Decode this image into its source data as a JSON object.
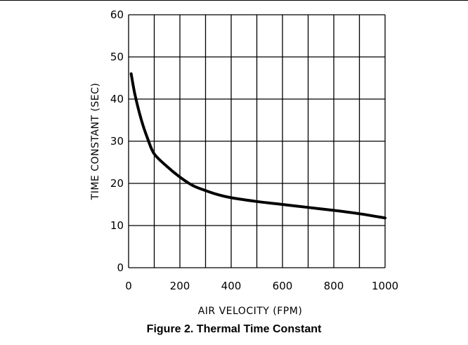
{
  "figure_caption": "Figure 2. Thermal Time Constant",
  "chart_data": {
    "type": "line",
    "title": "",
    "xlabel": "AIR VELOCITY (FPM)",
    "ylabel": "TIME CONSTANT (SEC)",
    "xlim": [
      0,
      1000
    ],
    "ylim": [
      0,
      60
    ],
    "x_ticks": [
      0,
      200,
      400,
      600,
      800,
      1000
    ],
    "y_ticks": [
      0,
      10,
      20,
      30,
      40,
      50,
      60
    ],
    "x_gridlines": [
      0,
      100,
      200,
      300,
      400,
      500,
      600,
      700,
      800,
      900,
      1000
    ],
    "y_gridlines": [
      0,
      10,
      20,
      30,
      40,
      50,
      60
    ],
    "grid": true,
    "line_color": "#000000",
    "series": [
      {
        "name": "",
        "x": [
          10,
          25,
          50,
          75,
          100,
          150,
          200,
          250,
          300,
          350,
          400,
          500,
          600,
          700,
          800,
          900,
          1000
        ],
        "y": [
          46,
          41,
          35,
          30.5,
          27,
          24,
          21.5,
          19.5,
          18.3,
          17.3,
          16.6,
          15.7,
          15,
          14.3,
          13.6,
          12.8,
          11.8
        ]
      }
    ]
  }
}
